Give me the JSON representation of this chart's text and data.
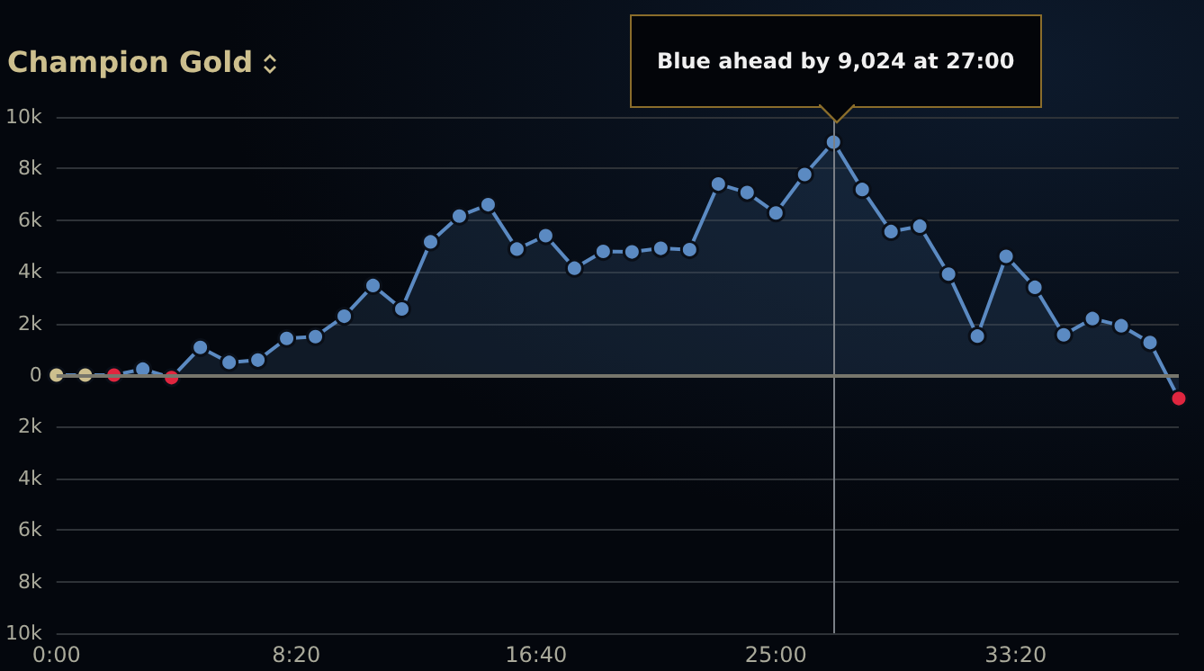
{
  "chart_data": {
    "type": "area",
    "title": "Champion Gold",
    "x": [
      0,
      1,
      2,
      3,
      4,
      5,
      6,
      7,
      8,
      9,
      10,
      11,
      12,
      13,
      14,
      15,
      16,
      17,
      18,
      19,
      20,
      21,
      22,
      23,
      24,
      25,
      26,
      27,
      28,
      29,
      30,
      31,
      32,
      33,
      34,
      35,
      36,
      37,
      38,
      39
    ],
    "series": [
      {
        "color": "#5b8ac2",
        "values": [
          0,
          0,
          0,
          230,
          -100,
          1070,
          490,
          580,
          1420,
          1490,
          2280,
          3470,
          2560,
          5160,
          6160,
          6600,
          4880,
          5400,
          4140,
          4790,
          4770,
          4910,
          4860,
          7400,
          7070,
          6280,
          7770,
          9024,
          7190,
          5560,
          5770,
          3910,
          1510,
          4600,
          3400,
          1560,
          2190,
          1910,
          1260,
          -910
        ],
        "colors": [
          "#cdbf8e",
          "#cdbf8e",
          "#e0263f",
          "#5b8ac2",
          "#e0263f",
          "#5b8ac2",
          "#5b8ac2",
          "#5b8ac2",
          "#5b8ac2",
          "#5b8ac2",
          "#5b8ac2",
          "#5b8ac2",
          "#5b8ac2",
          "#5b8ac2",
          "#5b8ac2",
          "#5b8ac2",
          "#5b8ac2",
          "#5b8ac2",
          "#5b8ac2",
          "#5b8ac2",
          "#5b8ac2",
          "#5b8ac2",
          "#5b8ac2",
          "#5b8ac2",
          "#5b8ac2",
          "#5b8ac2",
          "#5b8ac2",
          "#5b8ac2",
          "#5b8ac2",
          "#5b8ac2",
          "#5b8ac2",
          "#5b8ac2",
          "#5b8ac2",
          "#5b8ac2",
          "#5b8ac2",
          "#5b8ac2",
          "#5b8ac2",
          "#5b8ac2",
          "#5b8ac2",
          "#e0263f"
        ]
      }
    ],
    "xlim": [
      0,
      39
    ],
    "xticks": [
      {
        "value": 0,
        "label": "0:00"
      },
      {
        "value": 8.3333,
        "label": "8:20"
      },
      {
        "value": 16.6667,
        "label": "16:40"
      },
      {
        "value": 25,
        "label": "25:00"
      },
      {
        "value": 33.3333,
        "label": "33:20"
      }
    ],
    "ylim": [
      -10000,
      10000
    ],
    "yticks": [
      {
        "value": -10000,
        "label": "10k"
      },
      {
        "value": -8000,
        "label": "8k"
      },
      {
        "value": -6000,
        "label": "6k"
      },
      {
        "value": -4000,
        "label": "4k"
      },
      {
        "value": -2000,
        "label": "2k"
      },
      {
        "value": 0,
        "label": "0"
      },
      {
        "value": 2000,
        "label": "2k"
      },
      {
        "value": 4000,
        "label": "4k"
      },
      {
        "value": 6000,
        "label": "6k"
      },
      {
        "value": 8000,
        "label": "8k"
      },
      {
        "value": 10000,
        "label": "10k"
      }
    ],
    "grid": "y",
    "marker": "circle",
    "ref_lines": [
      {
        "axis": "x",
        "value": 27,
        "color": "#7a7f86"
      }
    ],
    "annotations": [
      "Blue ahead by 9,024 at 27:00"
    ]
  }
}
